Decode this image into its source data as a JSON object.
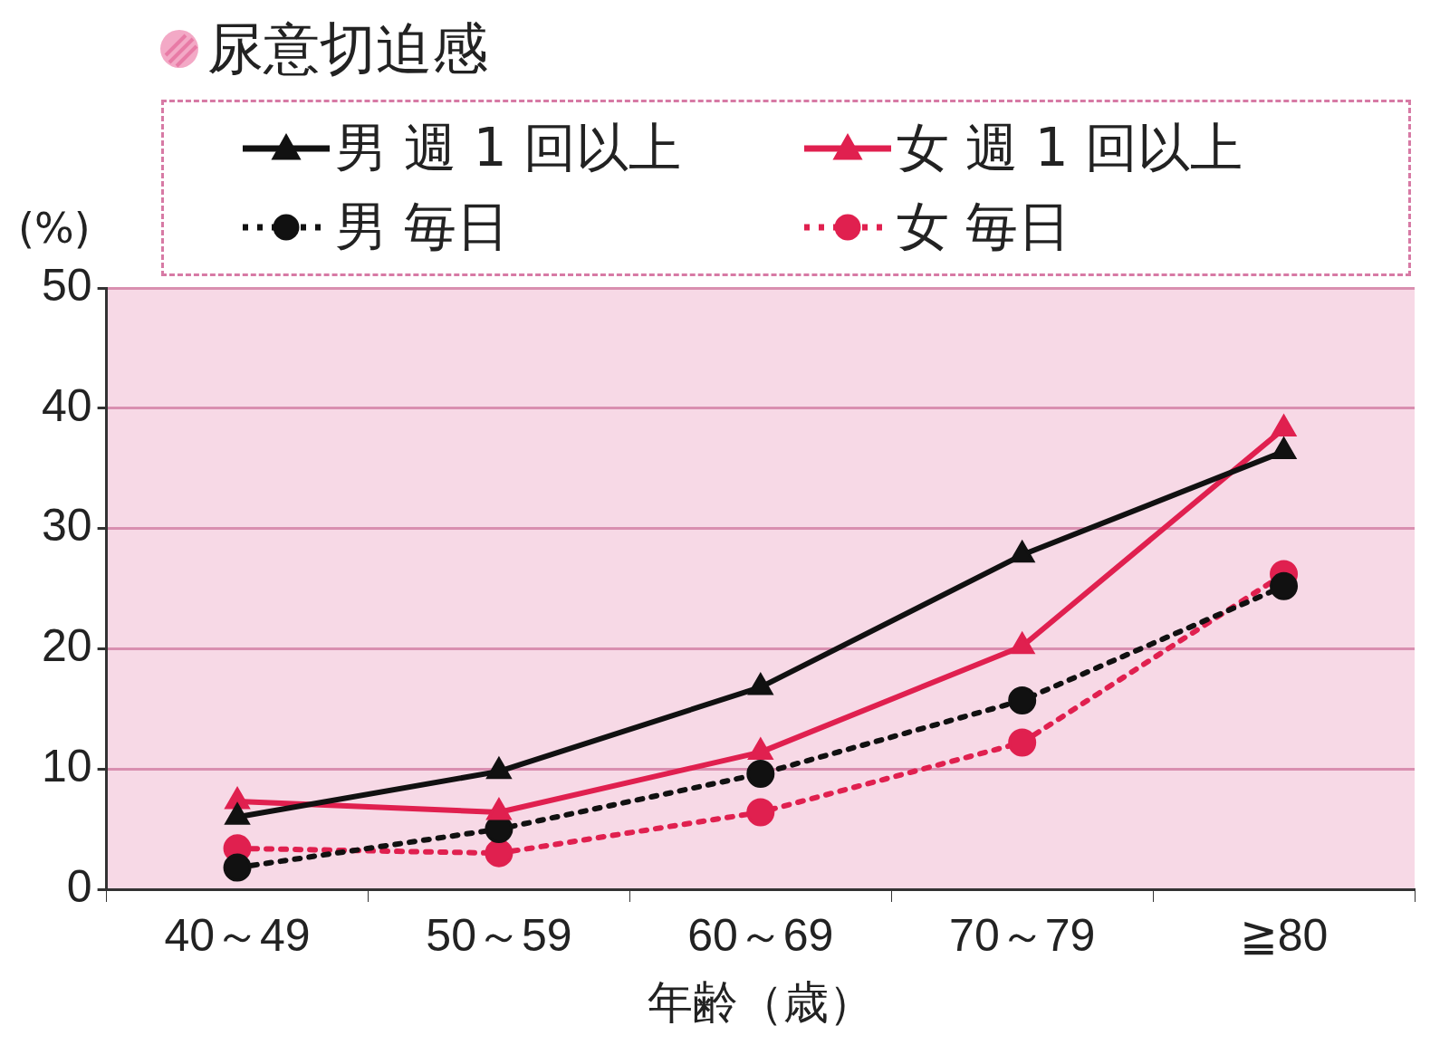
{
  "chart_data": {
    "type": "line",
    "title": "尿意切迫感",
    "ylabel": "(%)",
    "xlabel": "年齢（歳）",
    "categories": [
      "40～49",
      "50～59",
      "60～69",
      "70～79",
      "≧80"
    ],
    "series": [
      {
        "name": "男 週 1 回以上",
        "color": "#111111",
        "values": [
          6,
          9.8,
          16.8,
          27.8,
          36.4
        ],
        "marker": "triangle",
        "line_style": "solid"
      },
      {
        "name": "女 週 1 回以上",
        "color": "#e0204f",
        "values": [
          7.3,
          6.4,
          11.4,
          20.2,
          38.3
        ],
        "marker": "triangle",
        "line_style": "solid"
      },
      {
        "name": "男 毎日",
        "color": "#111111",
        "values": [
          1.8,
          5,
          9.6,
          15.7,
          25.2
        ],
        "marker": "circle",
        "line_style": "dotted"
      },
      {
        "name": "女 毎日",
        "color": "#e0204f",
        "values": [
          3.4,
          3,
          6.4,
          12.2,
          26.2
        ],
        "marker": "circle",
        "line_style": "dotted"
      }
    ],
    "ylim": [
      0,
      50
    ],
    "yticks": [
      0,
      10,
      20,
      30,
      40,
      50
    ],
    "grid": "y",
    "legend": "top"
  }
}
